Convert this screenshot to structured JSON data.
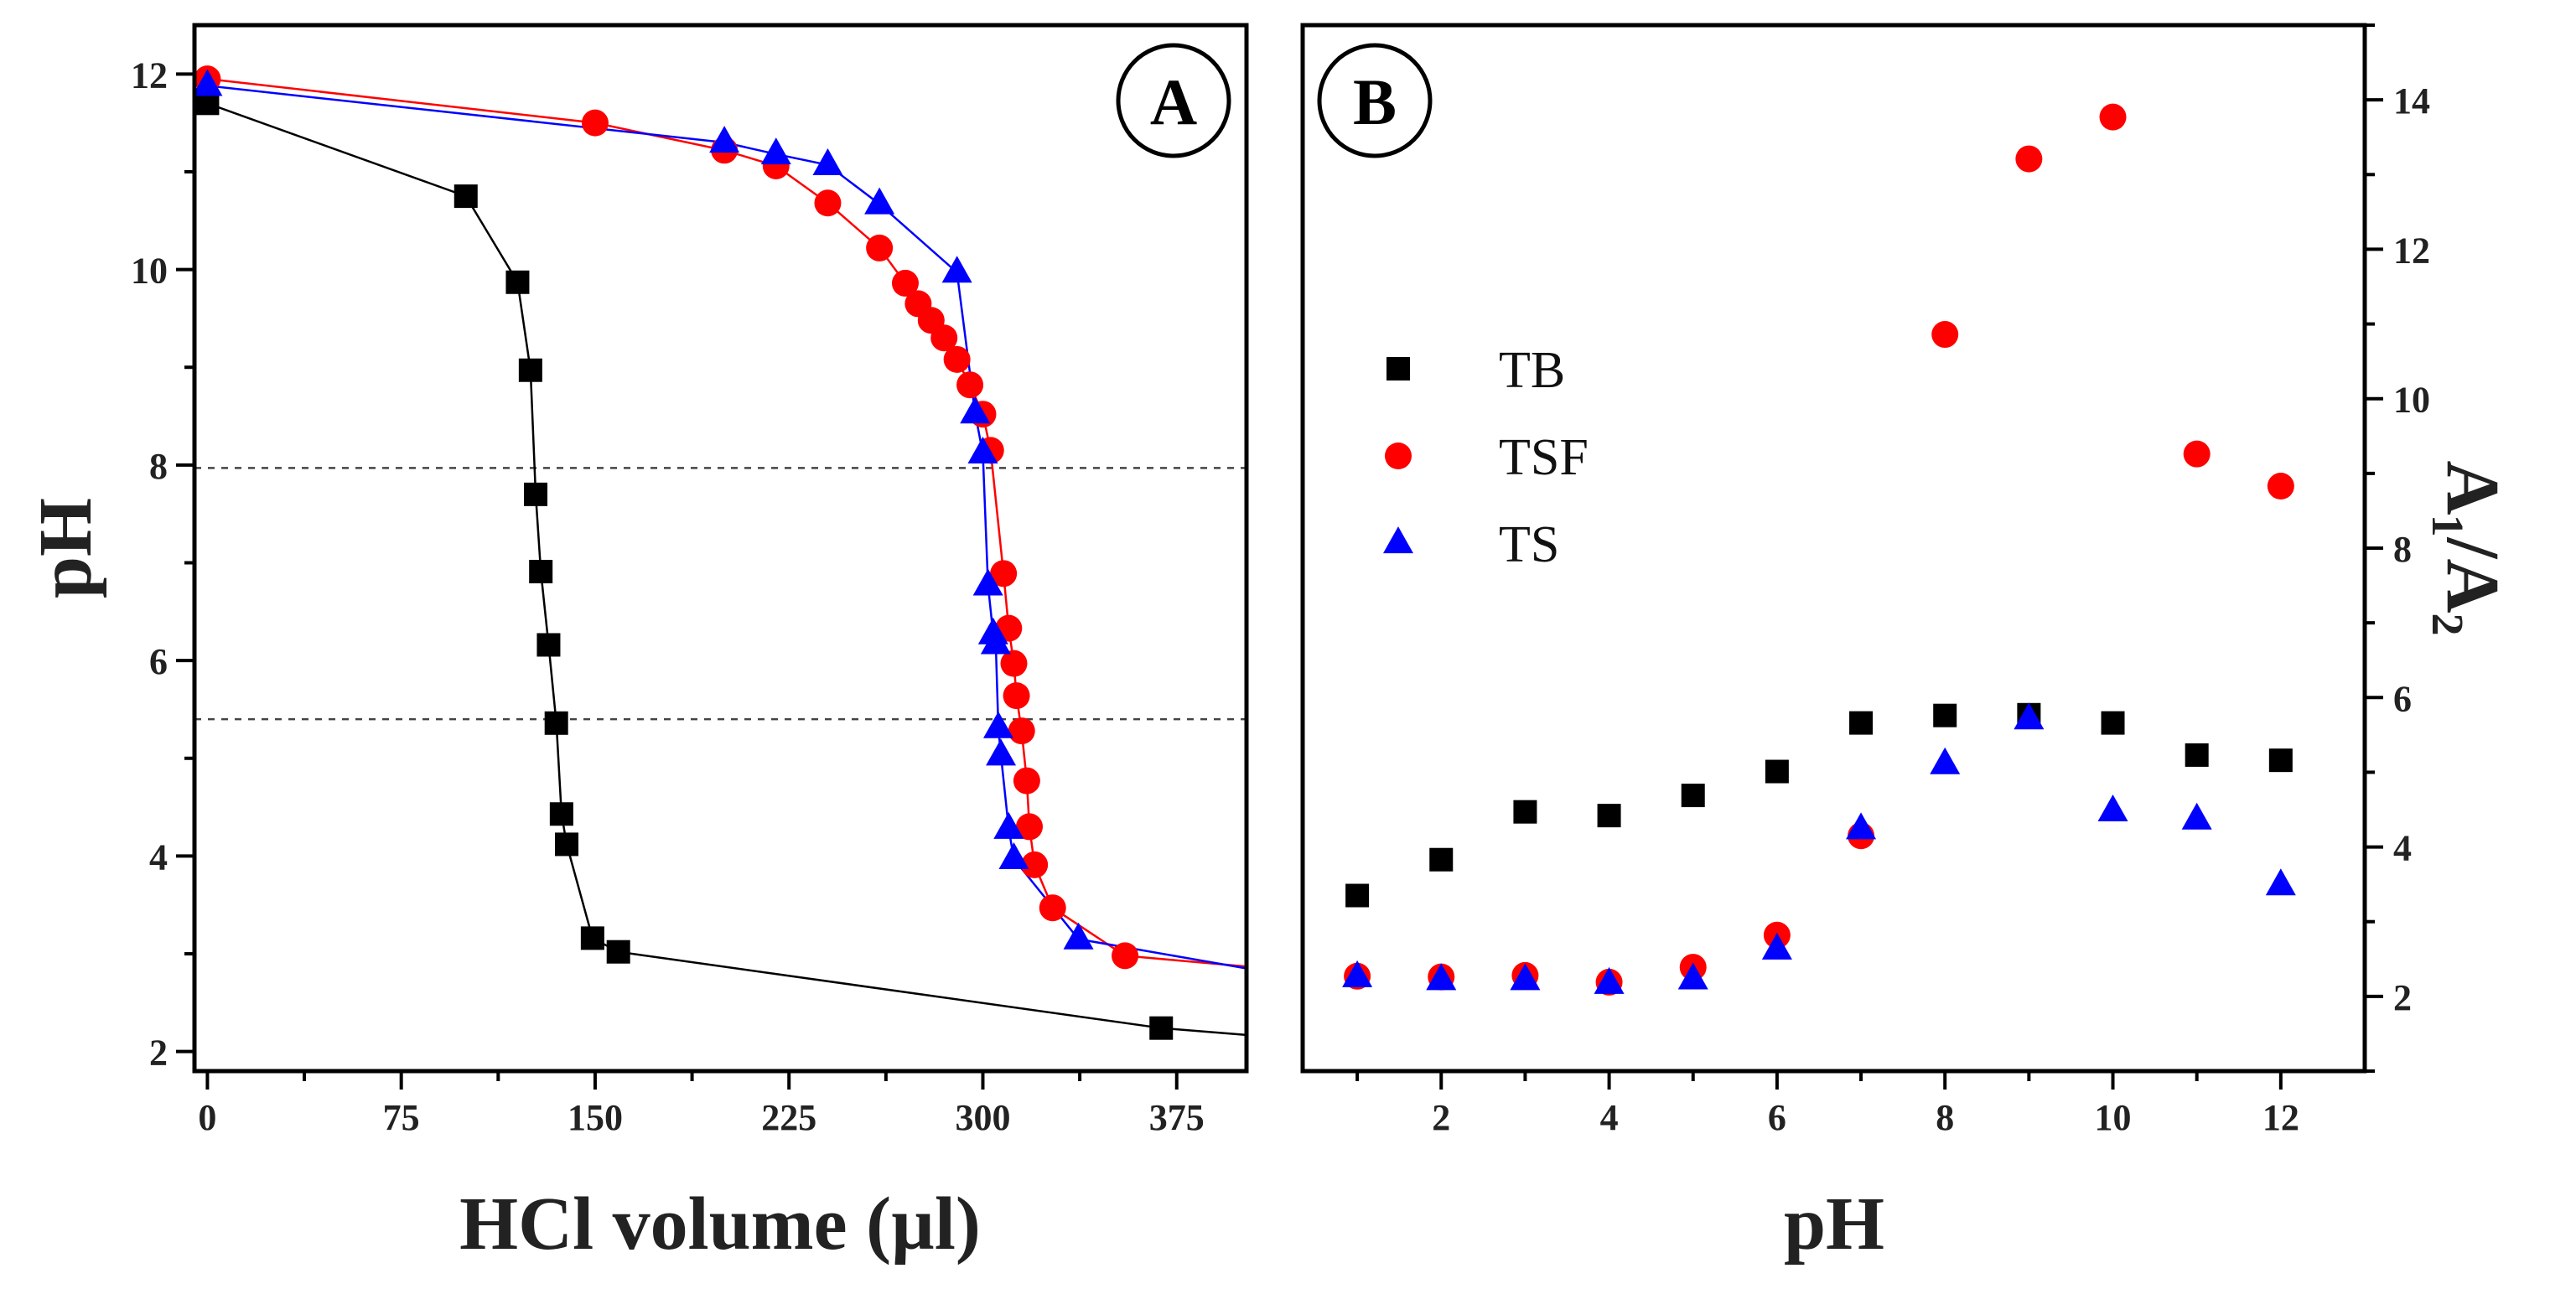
{
  "colors": {
    "TB": "#000000",
    "TSF": "#ff0000",
    "TS": "#0000ff"
  },
  "chart_data": [
    {
      "panel": "A",
      "type": "line",
      "badge": "A",
      "xlabel": "HCl volume (µl)",
      "ylabel": "pH",
      "xlim": [
        -5,
        402
      ],
      "ylim": [
        1.8,
        12.5
      ],
      "xticks": [
        0,
        75,
        150,
        225,
        300,
        375
      ],
      "yticks": [
        2,
        4,
        6,
        8,
        10,
        12
      ],
      "reference_lines_y": [
        7.97,
        5.4
      ],
      "series": [
        {
          "key": "TB",
          "marker": "square",
          "x": [
            0,
            100,
            120,
            125,
            127,
            129,
            132,
            135,
            137,
            139,
            149,
            159,
            369,
            402
          ],
          "y": [
            11.7,
            10.75,
            9.87,
            8.97,
            7.7,
            6.91,
            6.16,
            5.36,
            4.43,
            4.12,
            3.16,
            3.02,
            2.24,
            2.17
          ],
          "markers": [
            true,
            true,
            true,
            true,
            true,
            true,
            true,
            true,
            true,
            true,
            true,
            true,
            true,
            false
          ]
        },
        {
          "key": "TSF",
          "marker": "circle",
          "x": [
            0,
            150,
            200,
            220,
            240,
            260,
            270,
            275,
            280,
            285,
            290,
            295,
            300,
            303,
            308,
            310,
            312,
            313,
            315,
            317,
            318,
            320,
            327,
            355,
            402
          ],
          "y": [
            11.95,
            11.5,
            11.22,
            11.06,
            10.68,
            10.22,
            9.86,
            9.65,
            9.48,
            9.3,
            9.08,
            8.82,
            8.52,
            8.15,
            6.89,
            6.33,
            5.97,
            5.64,
            5.28,
            4.77,
            4.3,
            3.91,
            3.47,
            2.98,
            2.87
          ],
          "markers": [
            true,
            true,
            true,
            true,
            true,
            true,
            true,
            true,
            true,
            true,
            true,
            true,
            true,
            true,
            true,
            true,
            true,
            true,
            true,
            true,
            true,
            true,
            true,
            true,
            false
          ]
        },
        {
          "key": "TS",
          "marker": "triangle",
          "x": [
            0,
            200,
            220,
            240,
            260,
            290,
            297,
            300,
            302,
            304,
            305,
            306,
            307,
            308,
            310,
            312,
            337,
            402
          ],
          "y": [
            11.88,
            11.3,
            11.18,
            11.07,
            10.67,
            9.97,
            8.53,
            8.12,
            6.77,
            6.27,
            6.17,
            5.31,
            5.03,
            4.78,
            4.28,
            3.97,
            3.15,
            2.85
          ],
          "markers": [
            true,
            true,
            true,
            true,
            true,
            true,
            true,
            true,
            true,
            true,
            true,
            true,
            true,
            false,
            true,
            true,
            true,
            false
          ]
        }
      ]
    },
    {
      "panel": "B",
      "type": "scatter",
      "badge": "B",
      "xlabel": "pH",
      "ylabel": "A₁/A₂",
      "xlim": [
        0.35,
        13.0
      ],
      "ylim": [
        1.0,
        15.0
      ],
      "xticks": [
        2,
        4,
        6,
        8,
        10,
        12
      ],
      "yticks": [
        2,
        4,
        6,
        8,
        10,
        12,
        14
      ],
      "legend": {
        "position": "left-middle",
        "entries": [
          "TB",
          "TSF",
          "TS"
        ]
      },
      "series": [
        {
          "key": "TB",
          "marker": "square",
          "x": [
            1,
            2,
            3,
            4,
            5,
            6,
            7,
            8,
            9,
            10,
            11,
            12
          ],
          "y": [
            3.35,
            3.83,
            4.47,
            4.42,
            4.69,
            5.01,
            5.66,
            5.76,
            5.77,
            5.66,
            5.23,
            5.16
          ]
        },
        {
          "key": "TSF",
          "marker": "circle",
          "x": [
            1,
            2,
            3,
            4,
            5,
            6,
            7,
            8,
            9,
            10,
            11,
            12
          ],
          "y": [
            2.27,
            2.26,
            2.28,
            2.19,
            2.39,
            2.82,
            4.15,
            10.86,
            13.21,
            13.77,
            9.26,
            8.83
          ]
        },
        {
          "key": "TS",
          "marker": "triangle",
          "x": [
            1,
            2,
            3,
            4,
            5,
            6,
            7,
            8,
            9,
            10,
            11,
            12
          ],
          "y": [
            2.26,
            2.22,
            2.22,
            2.17,
            2.23,
            2.63,
            4.24,
            5.11,
            5.71,
            4.48,
            4.37,
            3.49
          ]
        }
      ]
    }
  ]
}
